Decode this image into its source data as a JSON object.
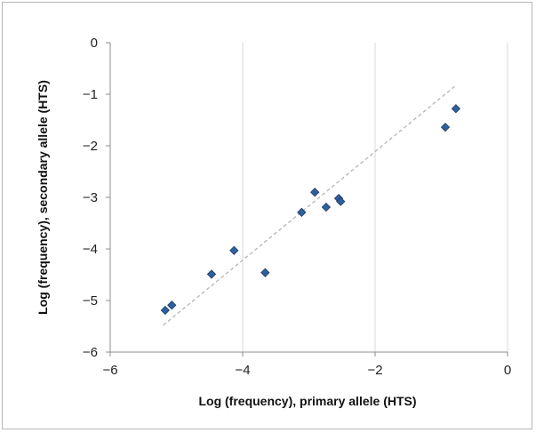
{
  "chart_data": {
    "type": "scatter",
    "title": "",
    "xlabel": "Log (frequency), primary allele (HTS)",
    "ylabel": "Log (frequency), secondary allele (HTS)",
    "xlim": [
      -6,
      0
    ],
    "ylim": [
      -6,
      0
    ],
    "x_ticks": [
      -6,
      -4,
      -2,
      0
    ],
    "y_ticks": [
      0,
      -1,
      -2,
      -3,
      -4,
      -5,
      -6
    ],
    "x_tick_labels": [
      "−6",
      "−4",
      "−2",
      "0"
    ],
    "y_tick_labels": [
      "0",
      "−1",
      "−2",
      "−3",
      "−4",
      "−5",
      "−6"
    ],
    "grid": "vertical major gridlines",
    "legend": "none",
    "series": [
      {
        "marker": "diamond",
        "color": "#2e5f9e",
        "points": [
          {
            "x": -5.17,
            "y": -5.19
          },
          {
            "x": -5.07,
            "y": -5.09
          },
          {
            "x": -4.47,
            "y": -4.49
          },
          {
            "x": -4.13,
            "y": -4.03
          },
          {
            "x": -3.66,
            "y": -4.46
          },
          {
            "x": -3.11,
            "y": -3.29
          },
          {
            "x": -2.91,
            "y": -2.9
          },
          {
            "x": -2.74,
            "y": -3.19
          },
          {
            "x": -2.55,
            "y": -3.02
          },
          {
            "x": -2.52,
            "y": -3.08
          },
          {
            "x": -0.94,
            "y": -1.64
          },
          {
            "x": -0.78,
            "y": -1.28
          }
        ]
      }
    ],
    "trendline": {
      "style": "dashed",
      "color": "#b5b5b5",
      "from": {
        "x": -5.2,
        "y": -5.48
      },
      "to": {
        "x": -0.8,
        "y": -0.85
      }
    }
  }
}
